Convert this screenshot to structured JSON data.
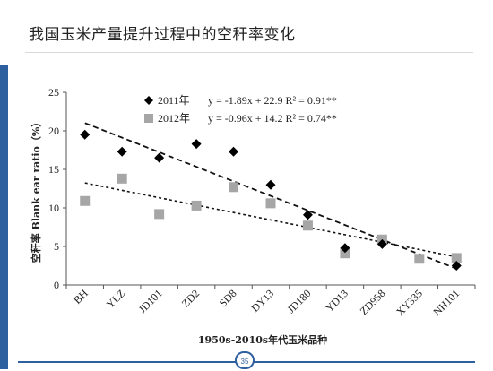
{
  "slide": {
    "title": "我国玉米产量提升过程中的空秆率变化",
    "page_number": "35"
  },
  "colors": {
    "accent": "#2e5f9e",
    "series_2011": "#000000",
    "series_2012": "#a6a6a6"
  },
  "chart_data": {
    "type": "scatter",
    "title": "",
    "xlabel": "1950s-2010s年代玉米品种",
    "ylabel": "空秆率 Blank ear ratio（%）",
    "ylim": [
      0,
      25
    ],
    "yticks": [
      0,
      5,
      10,
      15,
      20,
      25
    ],
    "grid": false,
    "categories": [
      "BH",
      "YLZ",
      "JD101",
      "ZD2",
      "SD8",
      "DY13",
      "JD180",
      "YD13",
      "ZD958",
      "XY335",
      "NH101"
    ],
    "series": [
      {
        "name": "2011年",
        "marker": "diamond",
        "equation": "y = -1.89x + 22.9  R² = 0.91**",
        "values": [
          19.5,
          17.3,
          16.5,
          18.3,
          17.3,
          13.0,
          9.1,
          4.8,
          5.3,
          null,
          2.5
        ],
        "trend": {
          "slope": -1.89,
          "intercept": 22.9
        }
      },
      {
        "name": "2012年",
        "marker": "square",
        "equation": "y = -0.96x + 14.2  R² = 0.74**",
        "values": [
          10.9,
          13.8,
          9.2,
          10.3,
          12.7,
          10.6,
          7.7,
          4.1,
          5.9,
          3.4,
          3.5
        ],
        "trend": {
          "slope": -0.96,
          "intercept": 14.2
        }
      }
    ]
  }
}
